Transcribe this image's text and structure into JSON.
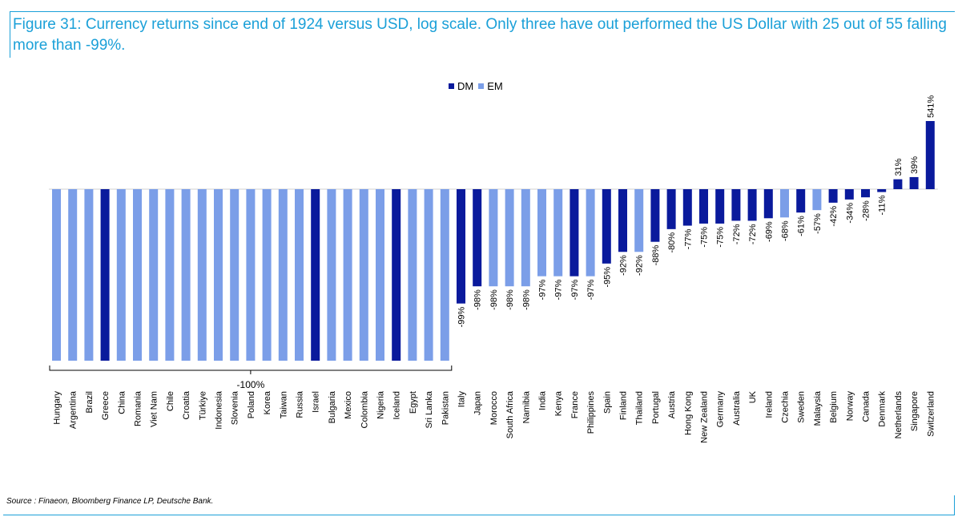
{
  "title": "Figure 31: Currency returns since end of 1924 versus USD, log scale. Only three have out performed the US Dollar with 25 out of 55 falling more than -99%.",
  "source": "Source : Finaeon, Bloomberg Finance LP, Deutsche Bank.",
  "colors": {
    "DM": "#0a1a9c",
    "EM": "#7b9ee8",
    "accent": "#1ba0d8"
  },
  "chart_data": {
    "type": "bar",
    "scale": "log",
    "legend": {
      "position": "top",
      "entries": [
        "DM",
        "EM"
      ]
    },
    "group_label": "-100%",
    "categories": [
      "Hungary",
      "Argentina",
      "Brazil",
      "Greece",
      "China",
      "Romania",
      "Viet Nam",
      "Chile",
      "Croatia",
      "Türkiye",
      "Indonesia",
      "Slovenia",
      "Poland",
      "Korea",
      "Taiwan",
      "Russia",
      "Israel",
      "Bulgaria",
      "Mexico",
      "Colombia",
      "Nigeria",
      "Iceland",
      "Egypt",
      "Sri Lanka",
      "Pakistan",
      "Italy",
      "Japan",
      "Morocco",
      "South Africa",
      "Namibia",
      "India",
      "Kenya",
      "France",
      "Philippines",
      "Spain",
      "Finland",
      "Thailand",
      "Portugal",
      "Austria",
      "Hong Kong",
      "New Zealand",
      "Germany",
      "Australia",
      "UK",
      "Ireland",
      "Czechia",
      "Sweden",
      "Malaysia",
      "Belgium",
      "Norway",
      "Canada",
      "Denmark",
      "Netherlands",
      "Singapore",
      "Switzerland"
    ],
    "groups": [
      "EM",
      "EM",
      "EM",
      "DM",
      "EM",
      "EM",
      "EM",
      "EM",
      "EM",
      "EM",
      "EM",
      "EM",
      "EM",
      "EM",
      "EM",
      "EM",
      "DM",
      "EM",
      "EM",
      "EM",
      "EM",
      "DM",
      "EM",
      "EM",
      "EM",
      "DM",
      "DM",
      "EM",
      "EM",
      "EM",
      "EM",
      "EM",
      "DM",
      "EM",
      "DM",
      "DM",
      "EM",
      "DM",
      "DM",
      "DM",
      "DM",
      "DM",
      "DM",
      "DM",
      "DM",
      "EM",
      "DM",
      "EM",
      "DM",
      "DM",
      "DM",
      "DM",
      "DM",
      "DM",
      "DM"
    ],
    "values": [
      -100,
      -100,
      -100,
      -100,
      -100,
      -100,
      -100,
      -100,
      -100,
      -100,
      -100,
      -100,
      -100,
      -100,
      -100,
      -100,
      -100,
      -100,
      -100,
      -100,
      -100,
      -100,
      -100,
      -100,
      -100,
      -99,
      -98,
      -98,
      -98,
      -98,
      -97,
      -97,
      -97,
      -97,
      -95,
      -92,
      -92,
      -88,
      -80,
      -77,
      -75,
      -75,
      -72,
      -72,
      -69,
      -68,
      -61,
      -57,
      -42,
      -34,
      -28,
      -11,
      31,
      39,
      541
    ],
    "labels": [
      "",
      "",
      "",
      "",
      "",
      "",
      "",
      "",
      "",
      "",
      "",
      "",
      "",
      "",
      "",
      "",
      "",
      "",
      "",
      "",
      "",
      "",
      "",
      "",
      "",
      "-99%",
      "-98%",
      "-98%",
      "-98%",
      "-98%",
      "-97%",
      "-97%",
      "-97%",
      "-97%",
      "-95%",
      "-92%",
      "-92%",
      "-88%",
      "-80%",
      "-77%",
      "-75%",
      "-75%",
      "-72%",
      "-72%",
      "-69%",
      "-68%",
      "-61%",
      "-57%",
      "-42%",
      "-34%",
      "-28%",
      "-11%",
      "31%",
      "39%",
      "541%"
    ]
  }
}
